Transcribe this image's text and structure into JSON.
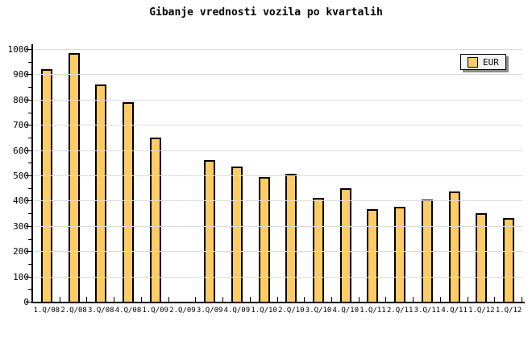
{
  "title": "Gibanje vrednosti vozila po kvartalih",
  "legend": {
    "label": "EUR"
  },
  "colors": {
    "background": "#FFFFFF",
    "bar_fill": "#FECC66",
    "bar_border": "#000000",
    "gridline": "#DCDCDC",
    "axis": "#000000",
    "text": "#000000",
    "legend_bg": "#F4F4F4",
    "legend_shadow": "#8C8C8C"
  },
  "chart_data": {
    "type": "bar",
    "title": "Gibanje vrednosti vozila po kvartalih",
    "series_name": "EUR",
    "categories": [
      "1.Q/08",
      "2.Q/08",
      "3.Q/08",
      "4.Q/08",
      "1.Q/09",
      "2.Q/09",
      "3.Q/09",
      "4.Q/09",
      "1.Q/10",
      "2.Q/10",
      "3.Q/10",
      "4.Q/10",
      "1.Q/11",
      "2.Q/11",
      "3.Q/11",
      "4.Q/11",
      "1.Q/12",
      "1.Q/12"
    ],
    "values": [
      920,
      985,
      860,
      790,
      650,
      null,
      560,
      535,
      495,
      505,
      410,
      450,
      365,
      375,
      405,
      435,
      350,
      330
    ],
    "missing_categories": [
      "2.Q/09"
    ],
    "xlabel": "",
    "ylabel": "",
    "ylim": [
      0,
      1000
    ],
    "y_major_step": 100,
    "y_minor_step": 50,
    "grid": "horizontal-major",
    "legend_position": "top-right"
  }
}
